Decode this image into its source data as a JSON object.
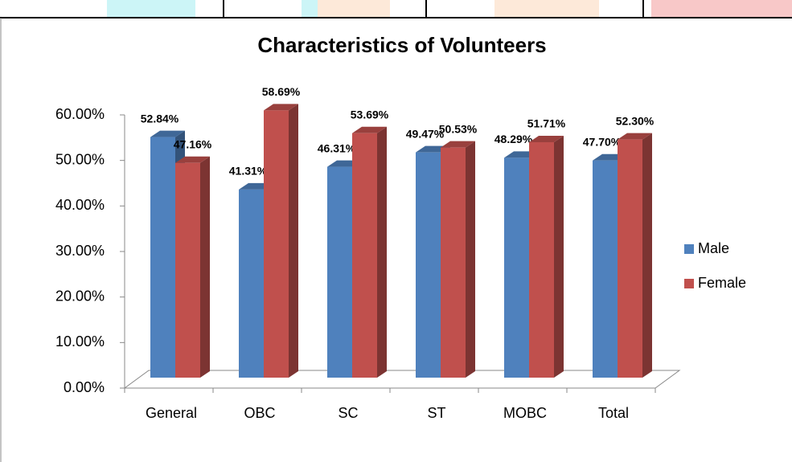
{
  "chart_data": {
    "type": "bar3d",
    "title": "Characteristics of Volunteers",
    "categories": [
      "General",
      "OBC",
      "SC",
      "ST",
      "MOBC",
      "Total"
    ],
    "series": [
      {
        "name": "Male",
        "color": "#4f81bd",
        "values": [
          52.84,
          41.31,
          46.31,
          49.47,
          48.29,
          47.7
        ],
        "value_labels": [
          "52.84%",
          "41.31%",
          "46.31%",
          "49.47%",
          "48.29%",
          "47.70%"
        ]
      },
      {
        "name": "Female",
        "color": "#c0504d",
        "values": [
          47.16,
          58.69,
          53.69,
          50.53,
          51.71,
          52.3
        ],
        "value_labels": [
          "47.16%",
          "58.69%",
          "53.69%",
          "50.53%",
          "51.71%",
          "52.30%"
        ]
      }
    ],
    "ylim": [
      0,
      60
    ],
    "yticks": [
      {
        "value": 0,
        "label": "0.00%"
      },
      {
        "value": 10,
        "label": "10.00%"
      },
      {
        "value": 20,
        "label": "20.00%"
      },
      {
        "value": 30,
        "label": "30.00%"
      },
      {
        "value": 40,
        "label": "40.00%"
      },
      {
        "value": 50,
        "label": "50.00%"
      },
      {
        "value": 60,
        "label": "60.00%"
      }
    ],
    "legend": "right"
  }
}
